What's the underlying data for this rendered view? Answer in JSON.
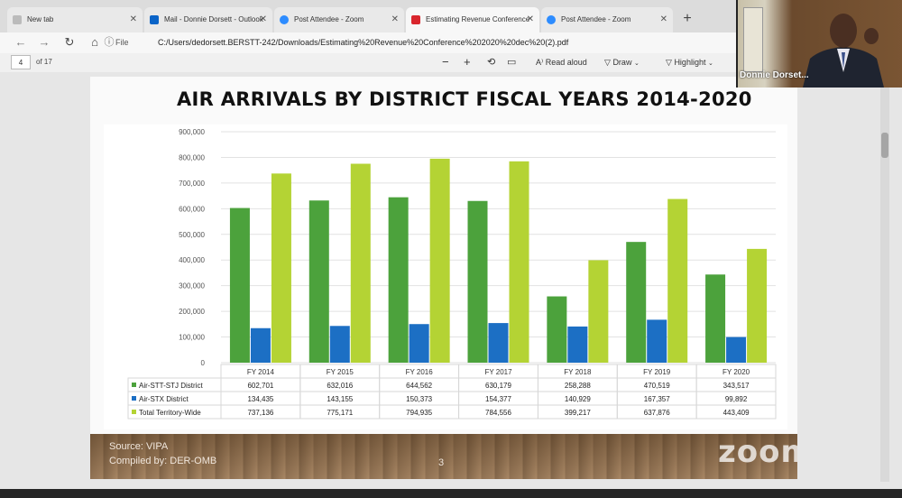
{
  "browser": {
    "tabs": [
      {
        "label": "New tab",
        "icon": "page-icon",
        "color": "#bbbbbb"
      },
      {
        "label": "Mail - Donnie Dorsett - Outlook",
        "icon": "outlook-icon",
        "color": "#0a64c8"
      },
      {
        "label": "Post Attendee - Zoom",
        "icon": "zoom-icon",
        "color": "#2d8cff"
      },
      {
        "label": "Estimating Revenue Conference",
        "icon": "pdf-icon",
        "color": "#d9262d"
      },
      {
        "label": "Post Attendee - Zoom",
        "icon": "zoom-icon",
        "color": "#2d8cff"
      }
    ],
    "new_tab": "+",
    "file_label": "File",
    "url": "C:/Users/dedorsett.BERSTT-242/Downloads/Estimating%20Revenue%20Conference%202020%20dec%20(2).pdf"
  },
  "pdf_toolbar": {
    "page": "4",
    "page_count": "of 17",
    "zoom_out": "−",
    "zoom_in": "+",
    "read_aloud": "Read aloud",
    "draw": "Draw",
    "highlight": "Highlight"
  },
  "slide": {
    "title": "AIR ARRIVALS BY DISTRICT FISCAL YEARS 2014-2020",
    "source": "Source: VIPA",
    "compiled": "Compiled by: DER-OMB",
    "page_number": "3",
    "watermark": "zoom"
  },
  "chart_data": {
    "type": "bar",
    "categories": [
      "FY 2014",
      "FY 2015",
      "FY 2016",
      "FY 2017",
      "FY 2018",
      "FY 2019",
      "FY 2020"
    ],
    "ylim": [
      0,
      900000
    ],
    "yticks": [
      "0",
      "100,000",
      "200,000",
      "300,000",
      "400,000",
      "500,000",
      "600,000",
      "700,000",
      "800,000",
      "900,000"
    ],
    "grid": true,
    "series": [
      {
        "name": "Air-STT-STJ District",
        "color": "#4ca23c",
        "values": [
          602701,
          632016,
          644562,
          630179,
          258288,
          470519,
          343517
        ],
        "labels": [
          "602,701",
          "632,016",
          "644,562",
          "630,179",
          "258,288",
          "470,519",
          "343,517"
        ]
      },
      {
        "name": "Air-STX District",
        "color": "#1c6fc4",
        "values": [
          134435,
          143155,
          150373,
          154377,
          140929,
          167357,
          99892
        ],
        "labels": [
          "134,435",
          "143,155",
          "150,373",
          "154,377",
          "140,929",
          "167,357",
          "99,892"
        ]
      },
      {
        "name": "Total Territory-Wide",
        "color": "#b4d334",
        "values": [
          737136,
          775171,
          794935,
          784556,
          399217,
          637876,
          443409
        ],
        "labels": [
          "737,136",
          "775,171",
          "794,935",
          "784,556",
          "399,217",
          "637,876",
          "443,409"
        ]
      }
    ]
  },
  "webcam": {
    "name": "Donnie Dorset..."
  }
}
